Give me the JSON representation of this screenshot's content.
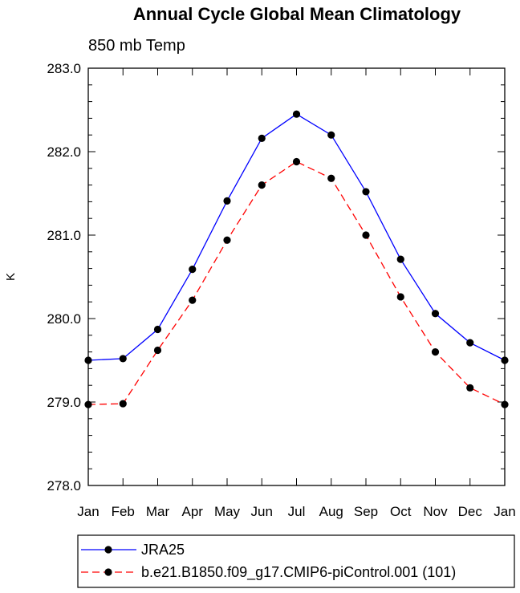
{
  "chart_data": {
    "type": "line",
    "title": "Annual Cycle Global Mean Climatology",
    "subtitle": "850 mb Temp",
    "xlabel": "",
    "ylabel": "K",
    "ylim": [
      278.0,
      283.0
    ],
    "yticks": [
      "278.0",
      "279.0",
      "280.0",
      "281.0",
      "282.0",
      "283.0"
    ],
    "categories": [
      "Jan",
      "Feb",
      "Mar",
      "Apr",
      "May",
      "Jun",
      "Jul",
      "Aug",
      "Sep",
      "Oct",
      "Nov",
      "Dec",
      "Jan"
    ],
    "series": [
      {
        "name": "JRA25",
        "color": "#0000ff",
        "dash": "solid",
        "values": [
          279.5,
          279.52,
          279.87,
          280.59,
          281.41,
          282.16,
          282.45,
          282.2,
          281.52,
          280.71,
          280.06,
          279.71,
          279.5
        ]
      },
      {
        "name": "b.e21.B1850.f09_g17.CMIP6-piControl.001 (101)",
        "color": "#ff0000",
        "dash": "dashed",
        "values": [
          278.97,
          278.98,
          279.62,
          280.22,
          280.94,
          281.6,
          281.88,
          281.68,
          281.0,
          280.26,
          279.6,
          279.17,
          278.97
        ]
      }
    ],
    "grid": false,
    "legend": "bottom"
  }
}
